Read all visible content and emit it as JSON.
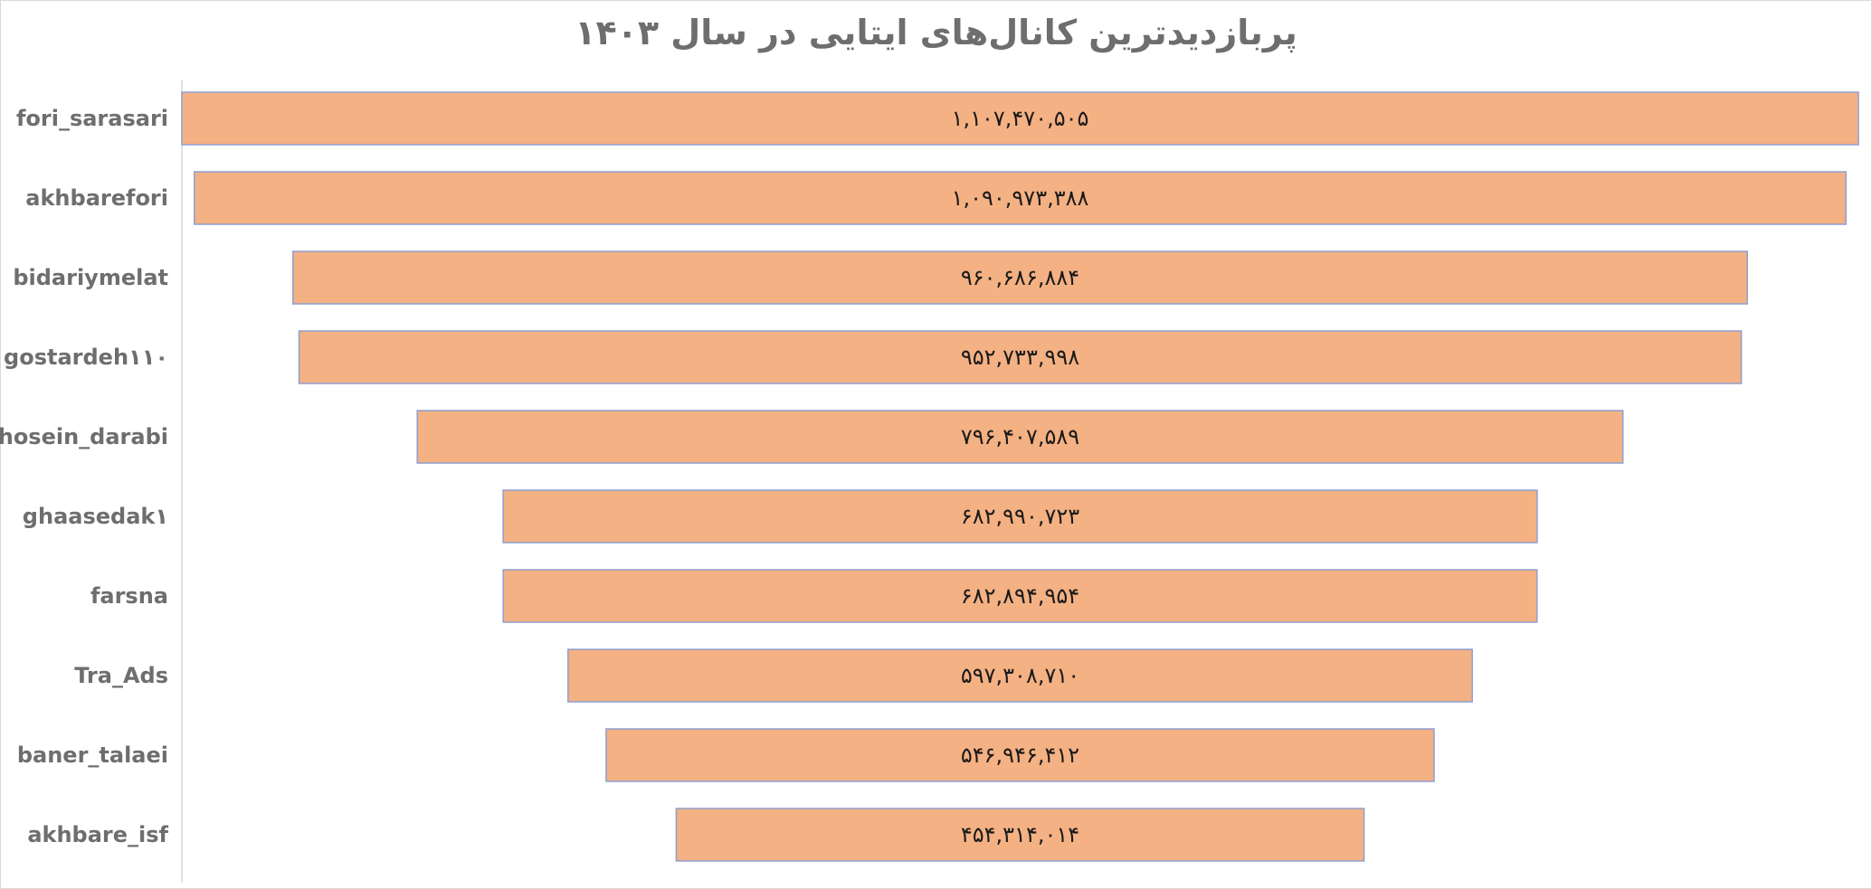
{
  "chart_data": {
    "type": "bar",
    "subtype": "funnel",
    "orientation": "horizontal",
    "title": "پربازدیدترین کانال‌های ایتایی در سال ۱۴۰۳",
    "categories": [
      "fori_sarasari",
      "akhbarefori",
      "bidariymelat",
      "gostardeh۱۱۰",
      "hosein_darabi",
      "ghaasedak۱",
      "farsna",
      "Tra_Ads",
      "baner_talaei",
      "akhbare_isf"
    ],
    "values": [
      1107470505,
      1090973388,
      960686884,
      952733998,
      796407589,
      682990723,
      682894954,
      597308710,
      546946412,
      454314014
    ],
    "value_labels": [
      "۱,۱۰۷,۴۷۰,۵۰۵",
      "۱,۰۹۰,۹۷۳,۳۸۸",
      "۹۶۰,۶۸۶,۸۸۴",
      "۹۵۲,۷۳۳,۹۹۸",
      "۷۹۶,۴۰۷,۵۸۹",
      "۶۸۲,۹۹۰,۷۲۳",
      "۶۸۲,۸۹۴,۹۵۴",
      "۵۹۷,۳۰۸,۷۱۰",
      "۵۴۶,۹۴۶,۴۱۲",
      "۴۵۴,۳۱۴,۰۱۴"
    ],
    "bar_color": "#f4b183",
    "bar_border_color": "#8e9fd0",
    "axis_color": "#d9d9d9",
    "grid": false,
    "legend": "none"
  }
}
